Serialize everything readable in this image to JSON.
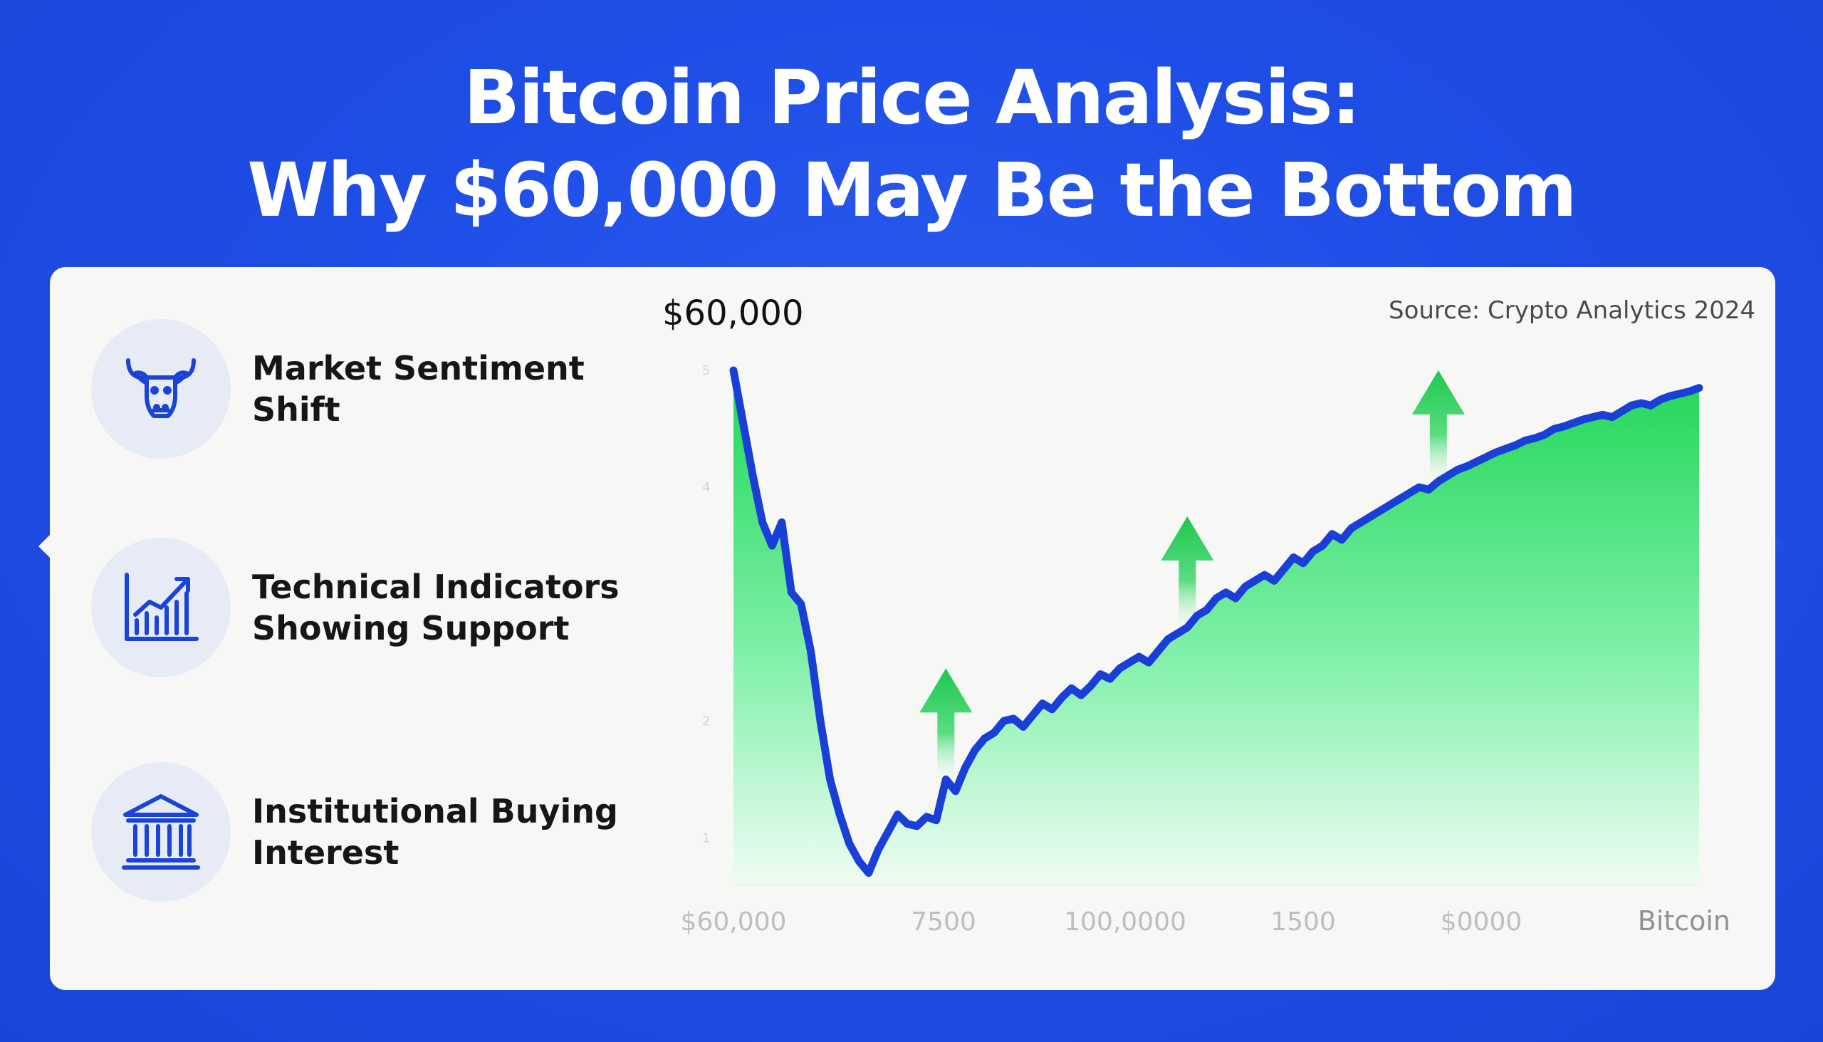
{
  "title": {
    "line1": "Bitcoin Price Analysis:",
    "line2": "Why $60,000 May Be the Bottom"
  },
  "features": [
    {
      "line1": "Market Sentiment",
      "line2": "Shift",
      "icon": "bull-icon"
    },
    {
      "line1": "Technical Indicators",
      "line2": "Showing Support",
      "icon": "bar-chart-growth-icon"
    },
    {
      "line1": "Institutional Buying",
      "line2": "Interest",
      "icon": "bank-building-icon"
    }
  ],
  "colors": {
    "background": "#1f4ee6",
    "line": "#1a3fd6",
    "area": "#22d35a",
    "arrow": "#1fc84f"
  },
  "chart_data": {
    "type": "area",
    "title": "$60,000",
    "source": "Source: Crypto Analytics 2024",
    "xlabel": "Bitcoin",
    "x_tick_labels": [
      "$60,000",
      "7500",
      "100,0000",
      "1500",
      "$0000"
    ],
    "y_tick_labels": [
      "5",
      "4",
      "2",
      "1"
    ],
    "ylim": [
      0.6,
      5.0
    ],
    "x": [
      0,
      1,
      2,
      3,
      4,
      5,
      6,
      7,
      8,
      9,
      10,
      11,
      12,
      13,
      14,
      15,
      16,
      17,
      18,
      19,
      20,
      21,
      22,
      23,
      24,
      25,
      26,
      27,
      28,
      29,
      30,
      31,
      32,
      33,
      34,
      35,
      36,
      37,
      38,
      39,
      40,
      41,
      42,
      43,
      44,
      45,
      46,
      47,
      48,
      49,
      50,
      51,
      52,
      53,
      54,
      55,
      56,
      57,
      58,
      59,
      60,
      61,
      62,
      63,
      64,
      65,
      66,
      67,
      68,
      69,
      70,
      71,
      72,
      73,
      74,
      75,
      76,
      77,
      78,
      79,
      80,
      81,
      82,
      83,
      84,
      85,
      86,
      87,
      88,
      89,
      90,
      91,
      92,
      93,
      94,
      95,
      96,
      97,
      98,
      99,
      100
    ],
    "values": [
      5.0,
      4.55,
      4.1,
      3.7,
      3.5,
      3.7,
      3.1,
      3.0,
      2.6,
      2.0,
      1.5,
      1.2,
      0.95,
      0.8,
      0.7,
      0.9,
      1.05,
      1.2,
      1.12,
      1.1,
      1.18,
      1.15,
      1.5,
      1.4,
      1.6,
      1.75,
      1.85,
      1.9,
      2.0,
      2.02,
      1.95,
      2.05,
      2.15,
      2.1,
      2.2,
      2.28,
      2.22,
      2.3,
      2.4,
      2.36,
      2.45,
      2.5,
      2.55,
      2.5,
      2.6,
      2.7,
      2.75,
      2.8,
      2.9,
      2.95,
      3.05,
      3.1,
      3.05,
      3.15,
      3.2,
      3.25,
      3.2,
      3.3,
      3.4,
      3.35,
      3.45,
      3.5,
      3.6,
      3.55,
      3.65,
      3.7,
      3.75,
      3.8,
      3.85,
      3.9,
      3.95,
      4.0,
      3.98,
      4.05,
      4.1,
      4.15,
      4.18,
      4.22,
      4.26,
      4.3,
      4.33,
      4.36,
      4.4,
      4.42,
      4.45,
      4.5,
      4.52,
      4.55,
      4.58,
      4.6,
      4.62,
      4.6,
      4.65,
      4.7,
      4.72,
      4.7,
      4.75,
      4.78,
      4.8,
      4.82,
      4.85
    ],
    "arrows_at_x": [
      22,
      47,
      73
    ],
    "grid": false,
    "legend": "none"
  }
}
